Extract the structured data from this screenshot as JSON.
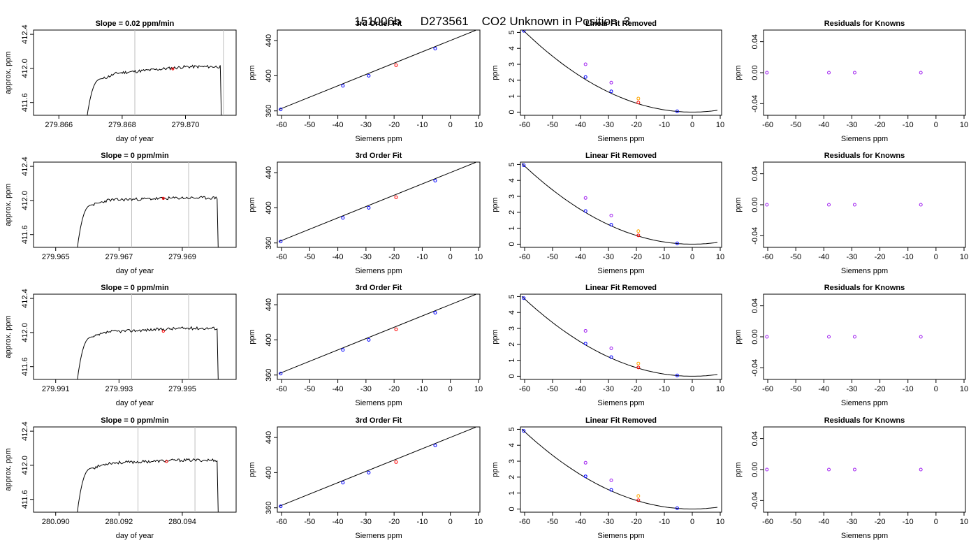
{
  "header": {
    "run_id": "151006b",
    "tank_id": "D273561",
    "description": "CO2 Unknown in Position  3"
  },
  "colors": {
    "line": "#000000",
    "vline": "#bebebe",
    "reference": "#0000ff",
    "unknown": "#ff0000",
    "magenta": "#a020f0",
    "orange": "#ffa500"
  },
  "chart_data": [
    {
      "row": 1,
      "type": "line",
      "title": "Slope =  0.02  ppm/min",
      "xlabel": "day of year",
      "ylabel": "approx. ppm",
      "xlim": [
        279.8652,
        279.8716
      ],
      "ylim": [
        411.45,
        412.45
      ],
      "xticks": [
        279.866,
        279.868,
        279.87
      ],
      "xtick_labels": [
        "279.866",
        "279.868",
        "279.870"
      ],
      "yticks": [
        411.6,
        412.0,
        412.4
      ],
      "ytick_labels": [
        "411.6",
        "412.0",
        "412.4"
      ],
      "trace": {
        "rise_start": 279.8668,
        "plateau_start": 279.8674,
        "end": 279.8711,
        "plateau_from": 411.93,
        "plateau_to": 412.02,
        "seed": 11
      },
      "vlines": [
        279.8684,
        279.8712
      ],
      "marker": {
        "x": 279.8696,
        "y": 411.995
      }
    },
    {
      "row": 2,
      "type": "line",
      "title": "Slope =  0  ppm/min",
      "xlabel": "day of year",
      "ylabel": "approx. ppm",
      "xlim": [
        279.9643,
        279.9707
      ],
      "ylim": [
        411.45,
        412.45
      ],
      "xticks": [
        279.965,
        279.967,
        279.969
      ],
      "xtick_labels": [
        "279.965",
        "279.967",
        "279.969"
      ],
      "yticks": [
        411.6,
        412.0,
        412.4
      ],
      "ytick_labels": [
        "411.6",
        "412.0",
        "412.4"
      ],
      "trace": {
        "rise_start": 279.9656,
        "plateau_start": 279.9662,
        "end": 279.9701,
        "plateau_from": 412.0,
        "plateau_to": 412.03,
        "seed": 23
      },
      "vlines": [
        279.9674,
        279.9692
      ],
      "marker": {
        "x": 279.9684,
        "y": 412.025
      }
    },
    {
      "row": 3,
      "type": "line",
      "title": "Slope =  0  ppm/min",
      "xlabel": "day of year",
      "ylabel": "approx. ppm",
      "xlim": [
        279.9903,
        279.9967
      ],
      "ylim": [
        411.45,
        412.45
      ],
      "xticks": [
        279.991,
        279.993,
        279.995
      ],
      "xtick_labels": [
        "279.991",
        "279.993",
        "279.995"
      ],
      "yticks": [
        411.6,
        412.0,
        412.4
      ],
      "ytick_labels": [
        "411.6",
        "412.0",
        "412.4"
      ],
      "trace": {
        "rise_start": 279.9916,
        "plateau_start": 279.9922,
        "end": 279.9961,
        "plateau_from": 412.0,
        "plateau_to": 412.05,
        "seed": 37
      },
      "vlines": [
        279.9934,
        279.9952
      ],
      "marker": {
        "x": 279.9944,
        "y": 412.015
      }
    },
    {
      "row": 4,
      "type": "line",
      "title": "Slope =  0  ppm/min",
      "xlabel": "day of year",
      "ylabel": "approx. ppm",
      "xlim": [
        280.0893,
        280.0957
      ],
      "ylim": [
        411.45,
        412.45
      ],
      "xticks": [
        280.09,
        280.092,
        280.094
      ],
      "xtick_labels": [
        "280.090",
        "280.092",
        "280.094"
      ],
      "yticks": [
        411.6,
        412.0,
        412.4
      ],
      "ytick_labels": [
        "411.6",
        "412.0",
        "412.4"
      ],
      "trace": {
        "rise_start": 280.0906,
        "plateau_start": 280.0912,
        "end": 280.0951,
        "plateau_from": 412.02,
        "plateau_to": 412.06,
        "seed": 53
      },
      "vlines": [
        280.0926,
        280.0944
      ],
      "marker": {
        "x": 280.0935,
        "y": 412.045
      }
    },
    {
      "panel": "3rd Order Fit",
      "type": "scatter",
      "title": "3rd Order Fit",
      "xlabel": "Siemens ppm",
      "ylabel": "ppm",
      "xlim": [
        -61.5,
        10.5
      ],
      "ylim": [
        355,
        452
      ],
      "xticks": [
        -60,
        -50,
        -40,
        -30,
        -20,
        -10,
        0,
        10
      ],
      "yticks": [
        360,
        400,
        440
      ],
      "fit_line": {
        "x": [
          -61,
          9
        ],
        "y": [
          361.5,
          451.7
        ]
      },
      "points": [
        {
          "x": -60.3,
          "y": 361.7,
          "role": "reference"
        },
        {
          "x": -38.2,
          "y": 388.6,
          "role": "reference"
        },
        {
          "x": -29.0,
          "y": 400.0,
          "role": "reference"
        },
        {
          "x": -19.3,
          "y": 412.0,
          "role": "unknown"
        },
        {
          "x": -5.4,
          "y": 430.9,
          "role": "reference"
        }
      ],
      "fit_unknown": [
        -19.3
      ]
    },
    {
      "panel": "Linear Fit Removed",
      "type": "scatter",
      "title": "Linear Fit Removed",
      "xlabel": "Siemens ppm",
      "ylabel": "ppm",
      "xlim": [
        -61.5,
        10.5
      ],
      "ylim": [
        -0.2,
        5.15
      ],
      "xticks": [
        -60,
        -50,
        -40,
        -30,
        -20,
        -10,
        0,
        10
      ],
      "yticks": [
        0,
        1,
        2,
        3,
        4,
        5
      ],
      "rows": [
        {
          "points": [
            {
              "x": -60.3,
              "y": 5.1,
              "color": "blue"
            },
            {
              "x": -38.2,
              "y": 2.2,
              "color": "blue"
            },
            {
              "x": -38.2,
              "y": 3.0,
              "color": "magenta"
            },
            {
              "x": -29.0,
              "y": 1.3,
              "color": "blue"
            },
            {
              "x": -29.0,
              "y": 1.85,
              "color": "magenta"
            },
            {
              "x": -19.3,
              "y": 0.6,
              "color": "red"
            },
            {
              "x": -19.3,
              "y": 0.85,
              "color": "orange"
            },
            {
              "x": -5.4,
              "y": 0.05,
              "color": "blue"
            }
          ]
        },
        {
          "points": [
            {
              "x": -60.3,
              "y": 4.95,
              "color": "blue"
            },
            {
              "x": -38.2,
              "y": 2.08,
              "color": "blue"
            },
            {
              "x": -38.2,
              "y": 2.9,
              "color": "magenta"
            },
            {
              "x": -29.0,
              "y": 1.22,
              "color": "blue"
            },
            {
              "x": -29.0,
              "y": 1.8,
              "color": "magenta"
            },
            {
              "x": -19.3,
              "y": 0.55,
              "color": "red"
            },
            {
              "x": -19.3,
              "y": 0.82,
              "color": "orange"
            },
            {
              "x": -5.4,
              "y": 0.05,
              "color": "blue"
            }
          ]
        },
        {
          "points": [
            {
              "x": -60.3,
              "y": 4.9,
              "color": "blue"
            },
            {
              "x": -38.2,
              "y": 2.05,
              "color": "blue"
            },
            {
              "x": -38.2,
              "y": 2.85,
              "color": "magenta"
            },
            {
              "x": -29.0,
              "y": 1.2,
              "color": "blue"
            },
            {
              "x": -29.0,
              "y": 1.75,
              "color": "magenta"
            },
            {
              "x": -19.3,
              "y": 0.55,
              "color": "red"
            },
            {
              "x": -19.3,
              "y": 0.8,
              "color": "orange"
            },
            {
              "x": -5.4,
              "y": 0.05,
              "color": "blue"
            }
          ]
        },
        {
          "points": [
            {
              "x": -60.3,
              "y": 4.9,
              "color": "blue"
            },
            {
              "x": -38.2,
              "y": 2.05,
              "color": "blue"
            },
            {
              "x": -38.2,
              "y": 2.9,
              "color": "magenta"
            },
            {
              "x": -29.0,
              "y": 1.2,
              "color": "blue"
            },
            {
              "x": -29.0,
              "y": 1.8,
              "color": "magenta"
            },
            {
              "x": -19.3,
              "y": 0.55,
              "color": "red"
            },
            {
              "x": -19.3,
              "y": 0.82,
              "color": "orange"
            },
            {
              "x": -5.4,
              "y": 0.05,
              "color": "blue"
            }
          ]
        }
      ]
    },
    {
      "panel": "Residuals for Knowns",
      "type": "scatter",
      "title": "Residuals for Knowns",
      "xlabel": "Siemens ppm",
      "ylabel": "ppm",
      "xlim": [
        -61.5,
        10.5
      ],
      "ylim": [
        -0.055,
        0.055
      ],
      "xticks": [
        -60,
        -50,
        -40,
        -30,
        -20,
        -10,
        0,
        10
      ],
      "yticks": [
        -0.04,
        0.0,
        0.04
      ],
      "ytick_labels": [
        "-0.04",
        "0.00",
        "0.04"
      ],
      "points": [
        {
          "x": -60.3,
          "y": 0.0
        },
        {
          "x": -38.2,
          "y": 0.0
        },
        {
          "x": -29.0,
          "y": 0.0
        },
        {
          "x": -5.4,
          "y": 0.0
        }
      ]
    }
  ]
}
